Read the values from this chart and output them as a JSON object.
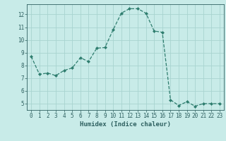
{
  "x": [
    0,
    1,
    2,
    3,
    4,
    5,
    6,
    7,
    8,
    9,
    10,
    11,
    12,
    13,
    14,
    15,
    16,
    17,
    18,
    19,
    20,
    21,
    22,
    23
  ],
  "y": [
    8.7,
    7.3,
    7.4,
    7.2,
    7.6,
    7.8,
    8.6,
    8.3,
    9.35,
    9.4,
    10.8,
    12.1,
    12.45,
    12.45,
    12.1,
    10.7,
    10.6,
    5.3,
    4.85,
    5.15,
    4.8,
    5.0,
    5.0,
    5.0
  ],
  "xlabel": "Humidex (Indice chaleur)",
  "line_color": "#2e7d6e",
  "marker_color": "#2e7d6e",
  "bg_color": "#c8ebe8",
  "grid_color": "#a8d4d0",
  "tick_label_color": "#2e6060",
  "ylim": [
    4.5,
    12.8
  ],
  "xlim": [
    -0.5,
    23.5
  ],
  "yticks": [
    5,
    6,
    7,
    8,
    9,
    10,
    11,
    12
  ],
  "xticks": [
    0,
    1,
    2,
    3,
    4,
    5,
    6,
    7,
    8,
    9,
    10,
    11,
    12,
    13,
    14,
    15,
    16,
    17,
    18,
    19,
    20,
    21,
    22,
    23
  ]
}
